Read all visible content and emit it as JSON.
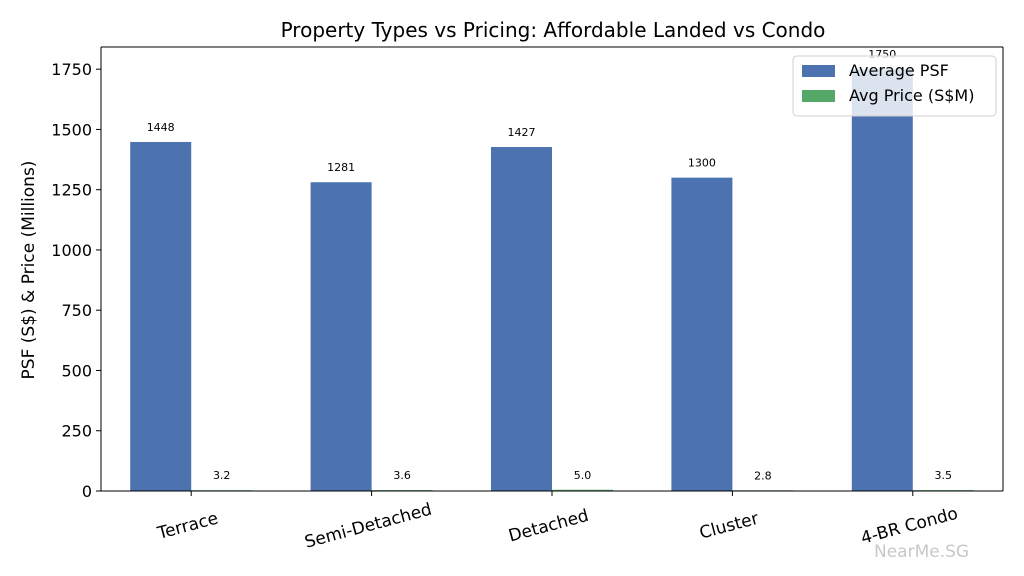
{
  "chart_data": {
    "type": "bar",
    "title": "Property Types vs Pricing: Affordable Landed vs Condo",
    "xlabel": "",
    "ylabel": "PSF (S$) & Price (Millions)",
    "categories": [
      "Terrace",
      "Semi-Detached",
      "Detached",
      "Cluster",
      "4-BR Condo"
    ],
    "series": [
      {
        "name": "Average PSF",
        "values": [
          1448,
          1281,
          1427,
          1300,
          1750
        ],
        "color": "#4c72b0",
        "labels": [
          "1448",
          "1281",
          "1427",
          "1300",
          "1750"
        ]
      },
      {
        "name": "Avg Price (S$M)",
        "values": [
          3.2,
          3.6,
          5.0,
          2.8,
          3.5
        ],
        "color": "#55a868",
        "labels": [
          "3.2",
          "3.6",
          "5.0",
          "2.8",
          "3.5"
        ]
      }
    ],
    "ylim": [
      0,
      1842
    ],
    "yticks": [
      0,
      250,
      500,
      750,
      1000,
      1250,
      1500,
      1750
    ],
    "ytick_labels": [
      "0",
      "250",
      "500",
      "750",
      "1000",
      "1250",
      "1500",
      "1750"
    ],
    "legend_position": "top-right",
    "grid": false
  },
  "watermark": "NearMe.SG"
}
